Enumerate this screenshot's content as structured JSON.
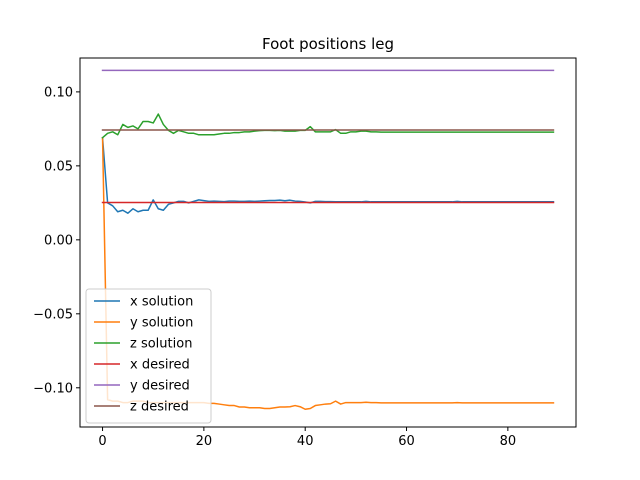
{
  "chart_data": {
    "type": "line",
    "title": "Foot positions leg",
    "xlabel": "",
    "ylabel": "",
    "xlim": [
      -4.45,
      93.45
    ],
    "ylim": [
      -0.1265,
      0.1229
    ],
    "xticks": [
      0,
      20,
      40,
      60,
      80
    ],
    "xtick_labels": [
      "0",
      "20",
      "40",
      "60",
      "80"
    ],
    "yticks": [
      -0.1,
      -0.05,
      0.0,
      0.05,
      0.1
    ],
    "ytick_labels": [
      "−0.10",
      "−0.05",
      "0.00",
      "0.05",
      "0.10"
    ],
    "grid": false,
    "legend_position": "lower-left",
    "series": [
      {
        "name": "x solution",
        "color": "#1f77b4",
        "x": [
          0,
          1,
          2,
          3,
          4,
          5,
          6,
          7,
          8,
          9,
          10,
          11,
          12,
          13,
          14,
          15,
          16,
          17,
          18,
          19,
          20,
          21,
          22,
          23,
          24,
          25,
          26,
          27,
          28,
          29,
          30,
          31,
          32,
          33,
          34,
          35,
          36,
          37,
          38,
          39,
          40,
          41,
          42,
          43,
          44,
          45,
          46,
          47,
          48,
          49,
          50,
          51,
          52,
          53,
          54,
          55,
          56,
          57,
          58,
          59,
          60,
          61,
          62,
          63,
          64,
          65,
          66,
          67,
          68,
          69,
          70,
          71,
          72,
          73,
          74,
          75,
          76,
          77,
          78,
          79,
          80,
          81,
          82,
          83,
          84,
          85,
          86,
          87,
          88,
          89
        ],
        "y": [
          0.069,
          0.025,
          0.023,
          0.019,
          0.02,
          0.018,
          0.021,
          0.019,
          0.02,
          0.02,
          0.027,
          0.021,
          0.02,
          0.024,
          0.025,
          0.026,
          0.026,
          0.025,
          0.026,
          0.027,
          0.0265,
          0.026,
          0.0262,
          0.026,
          0.0258,
          0.0262,
          0.0262,
          0.026,
          0.026,
          0.0262,
          0.026,
          0.0262,
          0.0264,
          0.0266,
          0.0266,
          0.0268,
          0.0264,
          0.0268,
          0.0262,
          0.026,
          0.0256,
          0.025,
          0.026,
          0.026,
          0.0258,
          0.0258,
          0.0257,
          0.0257,
          0.0257,
          0.0257,
          0.0257,
          0.0257,
          0.026,
          0.0257,
          0.0257,
          0.0257,
          0.0257,
          0.0257,
          0.0257,
          0.0257,
          0.0257,
          0.0257,
          0.0257,
          0.0257,
          0.0257,
          0.0257,
          0.0257,
          0.0257,
          0.0257,
          0.0257,
          0.026,
          0.0257,
          0.0257,
          0.0257,
          0.0257,
          0.0257,
          0.0257,
          0.0257,
          0.0257,
          0.0257,
          0.0257,
          0.0257,
          0.0257,
          0.0257,
          0.0257,
          0.0257,
          0.0257,
          0.0257,
          0.0257,
          0.0257
        ]
      },
      {
        "name": "y solution",
        "color": "#ff7f0e",
        "x": [
          0,
          1,
          2,
          3,
          4,
          5,
          6,
          7,
          8,
          9,
          10,
          11,
          12,
          13,
          14,
          15,
          16,
          17,
          18,
          19,
          20,
          21,
          22,
          23,
          24,
          25,
          26,
          27,
          28,
          29,
          30,
          31,
          32,
          33,
          34,
          35,
          36,
          37,
          38,
          39,
          40,
          41,
          42,
          43,
          44,
          45,
          46,
          47,
          48,
          49,
          50,
          51,
          52,
          53,
          54,
          55,
          56,
          57,
          58,
          59,
          60,
          61,
          62,
          63,
          64,
          65,
          66,
          67,
          68,
          69,
          70,
          71,
          72,
          73,
          74,
          75,
          76,
          77,
          78,
          79,
          80,
          81,
          82,
          83,
          84,
          85,
          86,
          87,
          88,
          89
        ],
        "y": [
          0.069,
          -0.108,
          -0.109,
          -0.109,
          -0.11,
          -0.11,
          -0.109,
          -0.109,
          -0.109,
          -0.11,
          -0.11,
          -0.11,
          -0.11,
          -0.11,
          -0.11,
          -0.11,
          -0.11,
          -0.11,
          -0.11,
          -0.11,
          -0.11,
          -0.1105,
          -0.1105,
          -0.111,
          -0.1115,
          -0.112,
          -0.112,
          -0.113,
          -0.113,
          -0.1135,
          -0.1135,
          -0.1135,
          -0.114,
          -0.114,
          -0.1135,
          -0.113,
          -0.113,
          -0.1128,
          -0.112,
          -0.1128,
          -0.1145,
          -0.114,
          -0.112,
          -0.1115,
          -0.111,
          -0.1108,
          -0.109,
          -0.111,
          -0.11,
          -0.11,
          -0.11,
          -0.11,
          -0.1098,
          -0.11,
          -0.11,
          -0.1102,
          -0.1102,
          -0.1102,
          -0.1102,
          -0.1102,
          -0.1102,
          -0.1102,
          -0.1102,
          -0.1102,
          -0.1102,
          -0.1102,
          -0.1102,
          -0.1102,
          -0.1102,
          -0.1102,
          -0.11,
          -0.1102,
          -0.1102,
          -0.1102,
          -0.1102,
          -0.1102,
          -0.1102,
          -0.1102,
          -0.1102,
          -0.1102,
          -0.1102,
          -0.1102,
          -0.1102,
          -0.1102,
          -0.1102,
          -0.1102,
          -0.1102,
          -0.1102,
          -0.1102,
          -0.1102
        ]
      },
      {
        "name": "z solution",
        "color": "#2ca02c",
        "x": [
          0,
          1,
          2,
          3,
          4,
          5,
          6,
          7,
          8,
          9,
          10,
          11,
          12,
          13,
          14,
          15,
          16,
          17,
          18,
          19,
          20,
          21,
          22,
          23,
          24,
          25,
          26,
          27,
          28,
          29,
          30,
          31,
          32,
          33,
          34,
          35,
          36,
          37,
          38,
          39,
          40,
          41,
          42,
          43,
          44,
          45,
          46,
          47,
          48,
          49,
          50,
          51,
          52,
          53,
          54,
          55,
          56,
          57,
          58,
          59,
          60,
          61,
          62,
          63,
          64,
          65,
          66,
          67,
          68,
          69,
          70,
          71,
          72,
          73,
          74,
          75,
          76,
          77,
          78,
          79,
          80,
          81,
          82,
          83,
          84,
          85,
          86,
          87,
          88,
          89
        ],
        "y": [
          0.069,
          0.072,
          0.073,
          0.071,
          0.078,
          0.076,
          0.077,
          0.075,
          0.08,
          0.08,
          0.079,
          0.085,
          0.078,
          0.074,
          0.072,
          0.074,
          0.073,
          0.072,
          0.072,
          0.071,
          0.071,
          0.071,
          0.071,
          0.0715,
          0.072,
          0.072,
          0.0725,
          0.0725,
          0.073,
          0.073,
          0.0735,
          0.0738,
          0.074,
          0.074,
          0.0738,
          0.074,
          0.0735,
          0.0735,
          0.0735,
          0.074,
          0.074,
          0.0765,
          0.073,
          0.073,
          0.073,
          0.073,
          0.0745,
          0.072,
          0.072,
          0.073,
          0.073,
          0.0735,
          0.0735,
          0.073,
          0.073,
          0.0728,
          0.0728,
          0.0728,
          0.0728,
          0.0728,
          0.0728,
          0.0728,
          0.0728,
          0.0728,
          0.0728,
          0.0728,
          0.0728,
          0.0728,
          0.0728,
          0.0728,
          0.0728,
          0.0728,
          0.0728,
          0.0728,
          0.0728,
          0.0728,
          0.0728,
          0.0728,
          0.0728,
          0.0728,
          0.0728,
          0.0728,
          0.0728,
          0.0728,
          0.0728,
          0.0728,
          0.0728,
          0.0728,
          0.0728,
          0.0728
        ]
      },
      {
        "name": "x desired",
        "color": "#d62728",
        "x": [
          0,
          89
        ],
        "y": [
          0.0252,
          0.0252
        ]
      },
      {
        "name": "y desired",
        "color": "#9467bd",
        "x": [
          0,
          89
        ],
        "y": [
          0.1145,
          0.1145
        ]
      },
      {
        "name": "z desired",
        "color": "#8c564b",
        "x": [
          0,
          89
        ],
        "y": [
          0.0742,
          0.0742
        ]
      }
    ]
  }
}
